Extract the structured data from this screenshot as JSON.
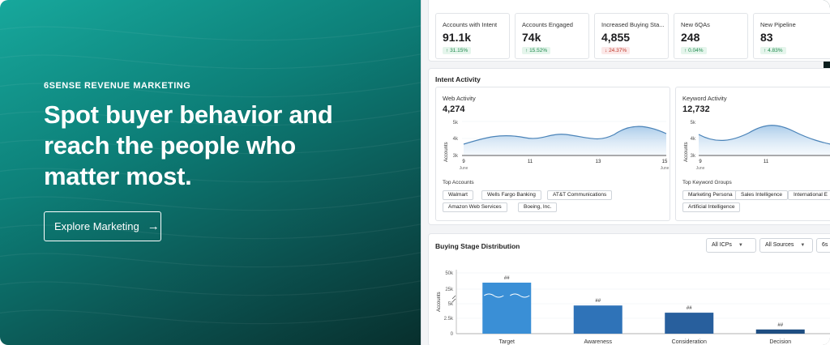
{
  "hero": {
    "eyebrow": "6SENSE REVENUE MARKETING",
    "headline_lines": [
      "Spot buyer behavior and",
      "reach the people who",
      "matter most."
    ],
    "cta_label": "Explore Marketing",
    "cta_icon": "arrow-right-icon"
  },
  "kpis": [
    {
      "label": "Accounts with Intent",
      "value": "91.1k",
      "change": "31.15%",
      "direction": "up"
    },
    {
      "label": "Accounts Engaged",
      "value": "74k",
      "change": "15.52%",
      "direction": "up"
    },
    {
      "label": "Increased Buying Sta...",
      "value": "4,855",
      "change": "24.37%",
      "direction": "down"
    },
    {
      "label": "New 6QAs",
      "value": "248",
      "change": "0.04%",
      "direction": "up"
    },
    {
      "label": "New Pipeline",
      "value": "83",
      "change": "4.83%",
      "direction": "up"
    }
  ],
  "intent_activity": {
    "title": "Intent Activity",
    "web": {
      "title": "Web Activity",
      "value": "4,274",
      "y_label": "Accounts",
      "y_ticks": [
        "5k",
        "4k",
        "3k"
      ],
      "x_ticks": [
        "9",
        "11",
        "13",
        "15"
      ],
      "x_sub": "June",
      "tags_title": "Top Accounts",
      "tags": [
        "Walmart",
        "Wells Fargo Banking",
        "AT&T Communications",
        "Amazon Web Services",
        "Boeing, Inc."
      ]
    },
    "keyword": {
      "title": "Keyword Activity",
      "value": "12,732",
      "y_label": "Accounts",
      "y_ticks": [
        "5k",
        "4k",
        "3k"
      ],
      "x_ticks": [
        "9",
        "11"
      ],
      "x_sub": "June",
      "tags_title": "Top Keyword Groups",
      "tags": [
        "Marketing Persona",
        "Sales Intelligence",
        "International E",
        "Artificial Intelligence"
      ]
    }
  },
  "distribution": {
    "title": "Buying Stage Distribution",
    "filters": [
      "All ICPs",
      "All Sources",
      "6s"
    ]
  },
  "chart_data": {
    "type": "bar",
    "categories": [
      "Target",
      "Awareness",
      "Consideration",
      "Decision"
    ],
    "values": [
      35000,
      4700,
      3500,
      700
    ],
    "data_labels": [
      "##",
      "##",
      "##",
      "##"
    ],
    "ylabel": "Accounts",
    "y_ticks": [
      "50k",
      "25k",
      "5k",
      "2.5k",
      "0"
    ],
    "y_axis": "broken scale (0–5k, then 25k–50k)",
    "colors": [
      "#3a8fd6",
      "#2f73b8",
      "#285f9d",
      "#1f4e82"
    ]
  },
  "colors": {
    "accent_teal": "#0d7f78",
    "chart_line": "#4a83b8",
    "positive": "#1e8a4c",
    "negative": "#c0392b"
  }
}
